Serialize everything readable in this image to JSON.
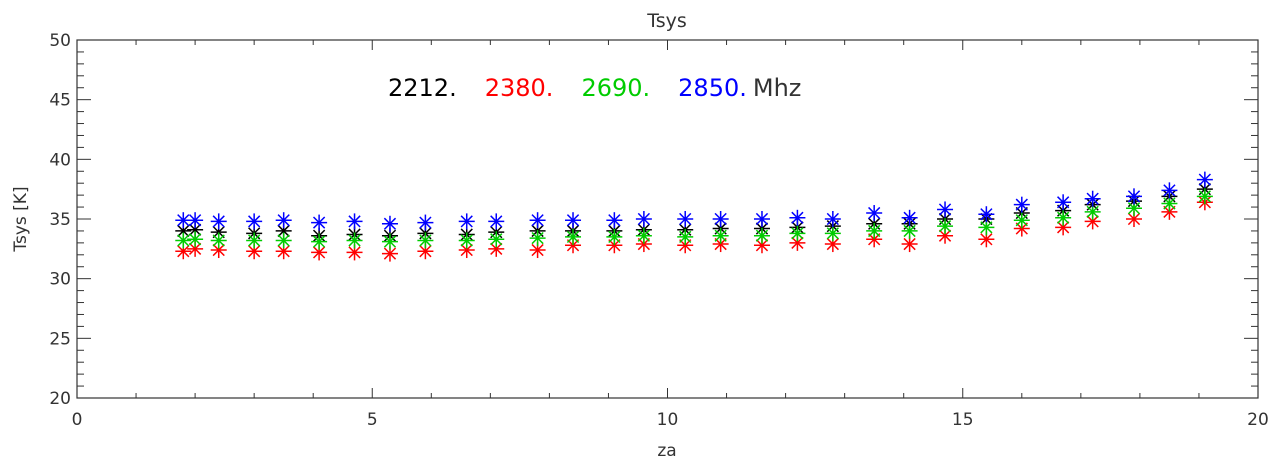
{
  "chart_data": {
    "type": "scatter",
    "title": "Tsys",
    "xlabel": "za",
    "ylabel": "Tsys [K]",
    "xlim": [
      0,
      20
    ],
    "ylim": [
      20,
      50
    ],
    "x_ticks": [
      "0",
      "5",
      "10",
      "15",
      "20"
    ],
    "y_ticks": [
      "20",
      "25",
      "30",
      "35",
      "40",
      "45",
      "50"
    ],
    "grid": false,
    "legend": {
      "position": "top-left",
      "entries": [
        "2212.",
        "2380.",
        "2690.",
        "2850."
      ],
      "unit": "Mhz"
    },
    "x": [
      1.8,
      2.0,
      2.4,
      3.0,
      3.5,
      4.1,
      4.7,
      5.3,
      5.9,
      6.6,
      7.1,
      7.8,
      8.4,
      9.1,
      9.6,
      10.3,
      10.9,
      11.6,
      12.2,
      12.8,
      13.5,
      14.1,
      14.7,
      15.4,
      16.0,
      16.7,
      17.2,
      17.9,
      18.5,
      19.1
    ],
    "series": [
      {
        "name": "2212.",
        "color": "#000000",
        "values": [
          34.0,
          34.1,
          33.9,
          33.8,
          34.0,
          33.6,
          33.7,
          33.6,
          33.8,
          33.7,
          33.9,
          34.0,
          34.0,
          34.0,
          34.1,
          34.1,
          34.2,
          34.2,
          34.3,
          34.4,
          34.6,
          34.6,
          35.0,
          35.0,
          35.5,
          35.7,
          36.2,
          36.5,
          36.9,
          37.5
        ]
      },
      {
        "name": "2380.",
        "color": "#ff0000",
        "values": [
          32.3,
          32.5,
          32.4,
          32.3,
          32.3,
          32.2,
          32.2,
          32.1,
          32.3,
          32.4,
          32.5,
          32.4,
          32.8,
          32.8,
          32.9,
          32.8,
          32.9,
          32.8,
          33.0,
          32.9,
          33.3,
          32.9,
          33.6,
          33.3,
          34.2,
          34.3,
          34.8,
          35.0,
          35.6,
          36.4
        ]
      },
      {
        "name": "2690.",
        "color": "#00cc00",
        "values": [
          33.2,
          33.3,
          33.2,
          33.2,
          33.2,
          33.1,
          33.2,
          33.1,
          33.2,
          33.2,
          33.3,
          33.4,
          33.5,
          33.5,
          33.6,
          33.5,
          33.6,
          33.6,
          33.8,
          33.8,
          34.0,
          34.0,
          34.4,
          34.3,
          34.9,
          35.1,
          35.6,
          35.9,
          36.3,
          36.9
        ]
      },
      {
        "name": "2850.",
        "color": "#0000ff",
        "values": [
          34.9,
          34.9,
          34.8,
          34.8,
          34.9,
          34.7,
          34.8,
          34.6,
          34.7,
          34.8,
          34.8,
          34.9,
          34.9,
          34.9,
          35.0,
          35.0,
          35.0,
          35.0,
          35.1,
          35.0,
          35.5,
          35.1,
          35.8,
          35.4,
          36.2,
          36.4,
          36.7,
          36.9,
          37.4,
          38.3
        ]
      }
    ]
  }
}
